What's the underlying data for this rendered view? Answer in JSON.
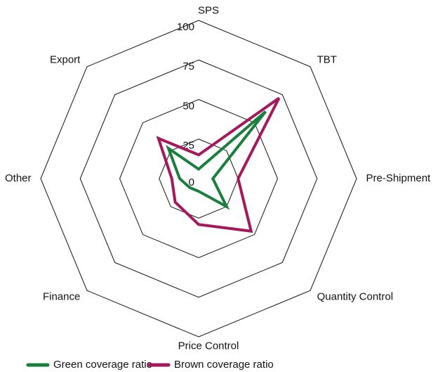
{
  "chart_data": {
    "type": "radar",
    "categories": [
      "SPS",
      "TBT",
      "Pre-Shipment",
      "Quantity Control",
      "Price Control",
      "Finance",
      "Other",
      "Export"
    ],
    "series": [
      {
        "name": "Green coverage ratio",
        "color": "#1a7f3c",
        "values": [
          6,
          60,
          9,
          25,
          8,
          8,
          12,
          27
        ]
      },
      {
        "name": "Brown coverage ratio",
        "color": "#a3195b",
        "values": [
          15,
          72,
          25,
          47,
          29,
          21,
          17,
          36
        ]
      }
    ],
    "ylim": [
      0,
      100
    ],
    "yticks": [
      0,
      25,
      50,
      75,
      100
    ],
    "grid": true,
    "legend": "bottom"
  }
}
